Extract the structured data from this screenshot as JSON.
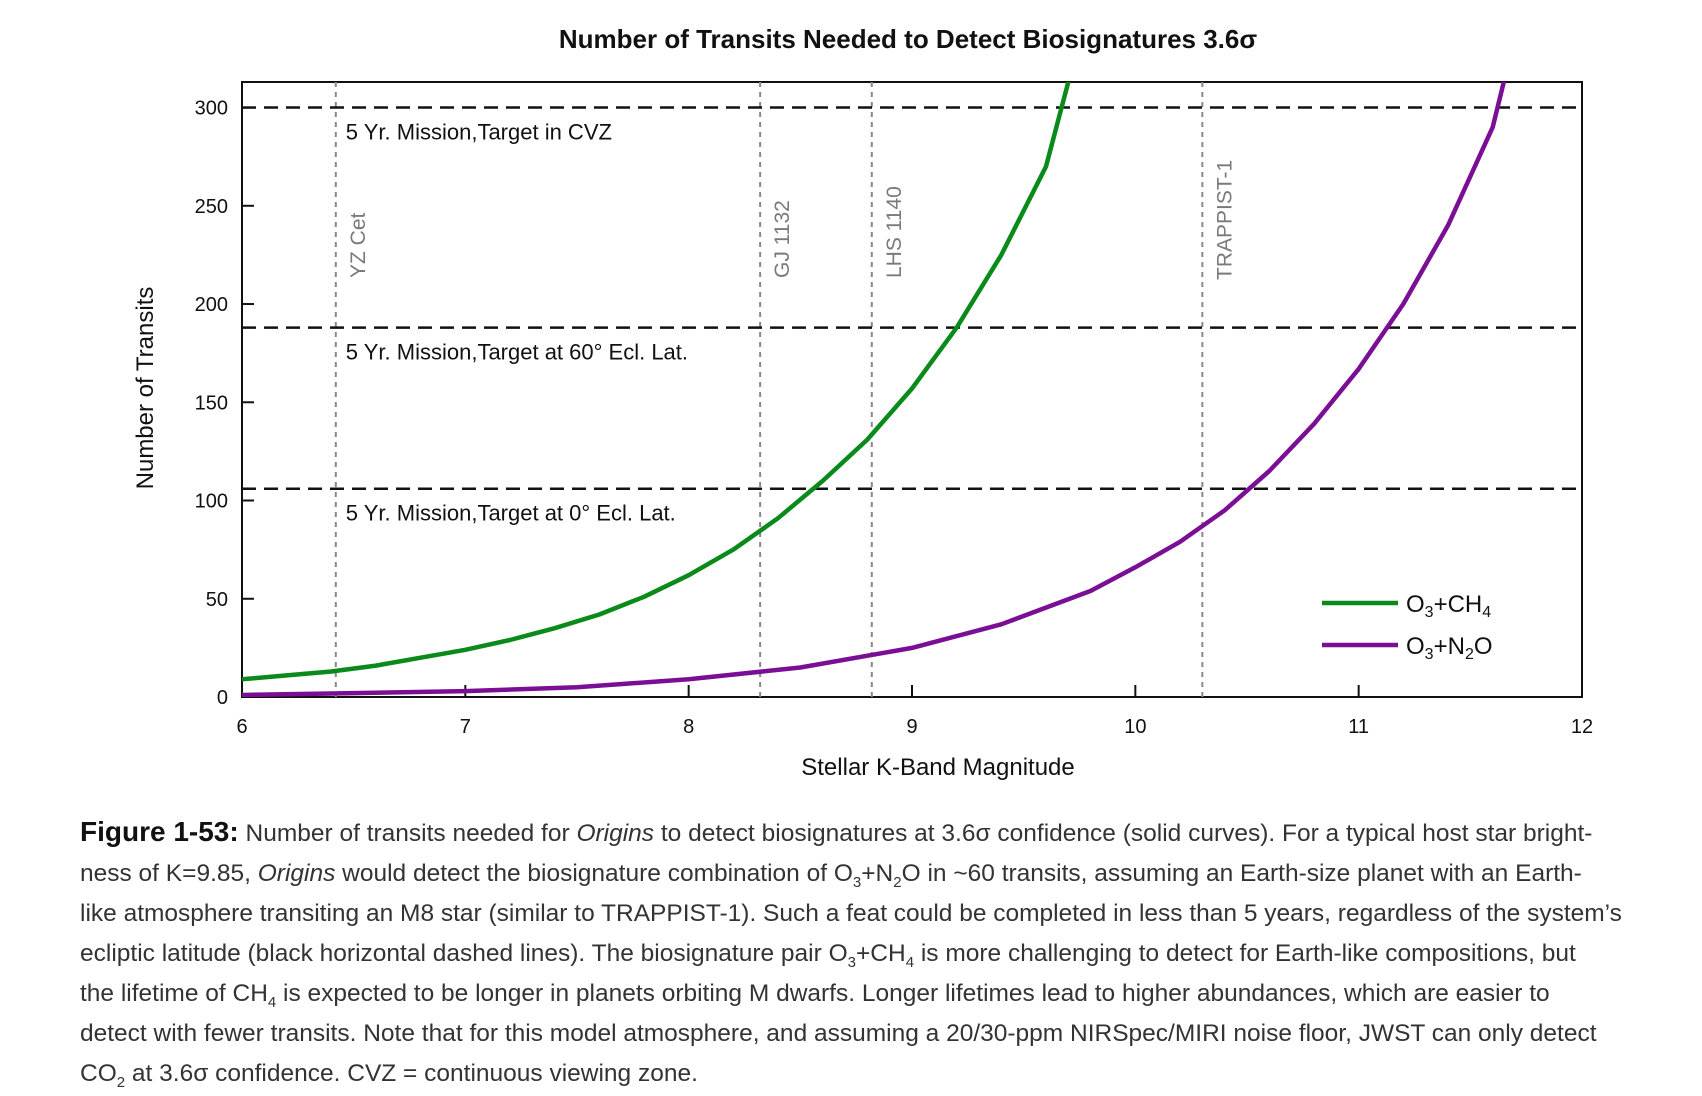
{
  "chart_data": {
    "type": "line",
    "title": "Number of Transits Needed to Detect Biosignatures 3.6σ",
    "xlabel": "Stellar K-Band Magnitude",
    "ylabel": "Number of Transits",
    "xlim": [
      6,
      12
    ],
    "ylim": [
      0,
      313
    ],
    "xticks": [
      6,
      7,
      8,
      9,
      10,
      11,
      12
    ],
    "yticks": [
      0,
      50,
      100,
      150,
      200,
      250,
      300
    ],
    "series": [
      {
        "name": "O3+CH4",
        "legend_main": "O",
        "legend_parts": [
          {
            "t": "O"
          },
          {
            "t": "3",
            "sub": true
          },
          {
            "t": "+CH"
          },
          {
            "t": "4",
            "sub": true
          }
        ],
        "color": "#0a8a1a",
        "x": [
          6.0,
          6.2,
          6.4,
          6.6,
          6.8,
          7.0,
          7.2,
          7.4,
          7.6,
          7.8,
          8.0,
          8.2,
          8.4,
          8.6,
          8.8,
          9.0,
          9.2,
          9.4,
          9.6,
          9.7
        ],
        "y": [
          9,
          11,
          13,
          16,
          20,
          24,
          29,
          35,
          42,
          51,
          62,
          75,
          91,
          110,
          131,
          157,
          188,
          225,
          270,
          313
        ]
      },
      {
        "name": "O3+N2O",
        "legend_parts": [
          {
            "t": "O"
          },
          {
            "t": "3",
            "sub": true
          },
          {
            "t": "+N"
          },
          {
            "t": "2",
            "sub": true
          },
          {
            "t": "O"
          }
        ],
        "color": "#7a0f96",
        "x": [
          6.0,
          6.5,
          7.0,
          7.5,
          8.0,
          8.5,
          9.0,
          9.4,
          9.8,
          10.0,
          10.2,
          10.4,
          10.6,
          10.8,
          11.0,
          11.2,
          11.4,
          11.6,
          11.65
        ],
        "y": [
          1,
          2,
          3,
          5,
          9,
          15,
          25,
          37,
          54,
          66,
          79,
          95,
          115,
          139,
          167,
          200,
          240,
          290,
          313
        ]
      }
    ],
    "horizontal_lines": [
      {
        "y": 300,
        "label": "5 Yr. Mission,Target in CVZ"
      },
      {
        "y": 188,
        "label": "5 Yr. Mission,Target at 60° Ecl. Lat."
      },
      {
        "y": 106,
        "label": "5 Yr. Mission,Target at 0° Ecl. Lat."
      }
    ],
    "vertical_lines": [
      {
        "x": 6.42,
        "label": "YZ Cet"
      },
      {
        "x": 8.32,
        "label": "GJ 1132"
      },
      {
        "x": 8.82,
        "label": "LHS 1140"
      },
      {
        "x": 10.3,
        "label": "TRAPPIST-1"
      }
    ],
    "legend_position": "bottom-right",
    "grid": false
  },
  "caption": {
    "figure_label": "Figure 1-53:",
    "lines": [
      [
        {
          "t": " Number of transits needed for "
        },
        {
          "t": "Origins",
          "i": true
        },
        {
          "t": " to detect biosignatures at 3.6σ confidence (solid curves). For a typical host star bright-"
        }
      ],
      [
        {
          "t": "ness of K=9.85, "
        },
        {
          "t": "Origins",
          "i": true
        },
        {
          "t": " would detect the biosignature combination of O"
        },
        {
          "t": "3",
          "sub": true
        },
        {
          "t": "+N"
        },
        {
          "t": "2",
          "sub": true
        },
        {
          "t": "O in ~60 transits, assuming an Earth-size planet with an Earth-"
        }
      ],
      [
        {
          "t": "like atmosphere transiting an M8 star (similar to TRAPPIST-1). Such a feat could be completed in less than 5 years, regardless of the system’s"
        }
      ],
      [
        {
          "t": "ecliptic latitude (black horizontal dashed lines). The biosignature pair O"
        },
        {
          "t": "3",
          "sub": true
        },
        {
          "t": "+CH"
        },
        {
          "t": "4",
          "sub": true
        },
        {
          "t": " is more challenging to detect for Earth-like compositions, but"
        }
      ],
      [
        {
          "t": "the lifetime of CH"
        },
        {
          "t": "4",
          "sub": true
        },
        {
          "t": " is expected to be longer in planets orbiting M dwarfs. Longer lifetimes lead to higher abundances, which are easier to"
        }
      ],
      [
        {
          "t": "detect with fewer transits. Note that for this model atmosphere, and assuming a 20/30-ppm NIRSpec/MIRI noise floor, JWST can only detect"
        }
      ],
      [
        {
          "t": "CO"
        },
        {
          "t": "2",
          "sub": true
        },
        {
          "t": " at 3.6σ confidence. CVZ = continuous viewing zone."
        }
      ]
    ]
  }
}
